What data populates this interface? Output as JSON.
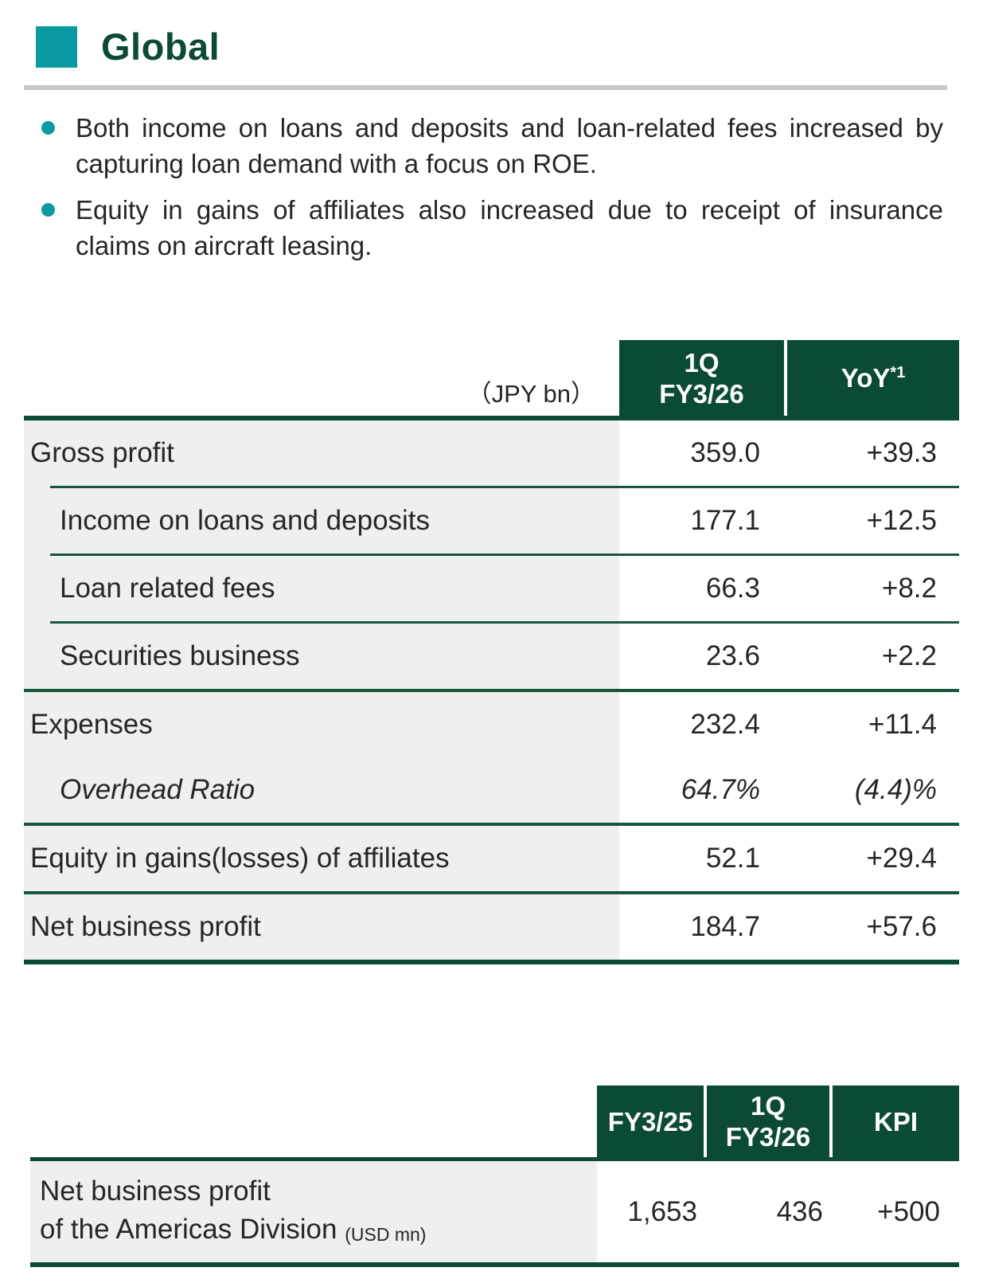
{
  "header": {
    "title": "Global"
  },
  "bullets": [
    "Both income on loans and deposits and loan-related fees increased by capturing loan demand with a focus on ROE.",
    "Equity in gains of affiliates also increased due to receipt of insurance claims on aircraft leasing."
  ],
  "colors": {
    "accent_teal": "#0C9AA2",
    "header_green": "#0B4A33",
    "row_label_gray": "#EFEFEF",
    "rule_gray": "#C8C8C8"
  },
  "table1": {
    "unit_label": "（JPY bn）",
    "col1_line1": "1Q",
    "col1_line2": "FY3/26",
    "col2_label": "YoY",
    "col2_sup": "*1",
    "rows": [
      {
        "label": "Gross profit",
        "indent": false,
        "italic": false,
        "q1": "359.0",
        "yoy": "+39.3"
      },
      {
        "label": "Income on loans and deposits",
        "indent": true,
        "italic": false,
        "q1": "177.1",
        "yoy": "+12.5"
      },
      {
        "label": "Loan related fees",
        "indent": true,
        "italic": false,
        "q1": "66.3",
        "yoy": "+8.2"
      },
      {
        "label": "Securities business",
        "indent": true,
        "italic": false,
        "q1": "23.6",
        "yoy": "+2.2"
      },
      {
        "label": "Expenses",
        "indent": false,
        "italic": false,
        "q1": "232.4",
        "yoy": "+11.4"
      },
      {
        "label": "Overhead Ratio",
        "indent": true,
        "italic": true,
        "q1": "64.7%",
        "yoy": "(4.4)%"
      },
      {
        "label": "Equity in gains(losses) of affiliates",
        "indent": false,
        "italic": false,
        "q1": "52.1",
        "yoy": "+29.4"
      },
      {
        "label": "Net business profit",
        "indent": false,
        "italic": false,
        "q1": "184.7",
        "yoy": "+57.6"
      }
    ]
  },
  "table2": {
    "col1": "FY3/25",
    "col2_line1": "1Q",
    "col2_line2": "FY3/26",
    "col3": "KPI",
    "row": {
      "label_line1": "Net business profit",
      "label_line2": "of the Americas Division",
      "unit": "(USD mn)",
      "fy3_25": "1,653",
      "q1_fy3_26": "436",
      "kpi": "+500"
    }
  }
}
